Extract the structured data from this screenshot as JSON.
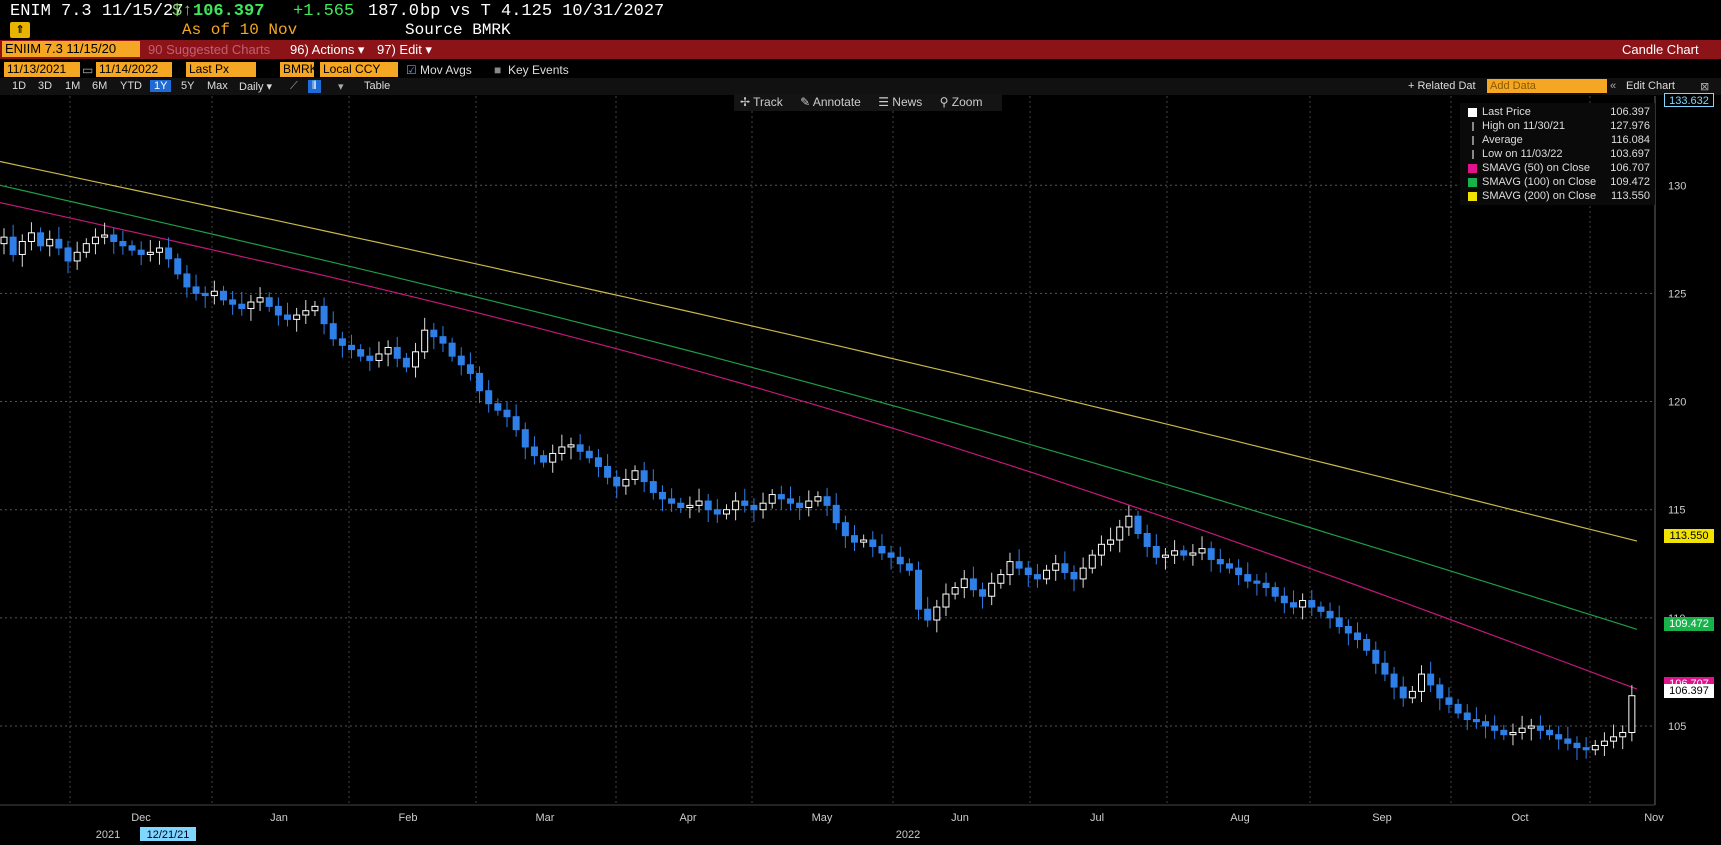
{
  "header": {
    "security": "ENIM 7.3 11/15/27",
    "price_prefix": "$↑",
    "price": "106.397",
    "change": "+1.565",
    "spread": "187.0",
    "spread_unit": "bp",
    "vs": "vs T 4.125 10/31/2027",
    "as_of": "As of 10 Nov",
    "source": "Source BMRK"
  },
  "toolbar": {
    "ticker_field": "ENIIM 7.3 11/15/20",
    "suggested": "90 Suggested Charts",
    "actions": "96) Actions ▾",
    "edit": "97) Edit ▾",
    "chart_type": "Candle Chart"
  },
  "params": {
    "start_date": "11/13/2021",
    "end_date": "11/14/2022",
    "field": "Last Px",
    "source": "BMRK",
    "currency": "Local CCY",
    "mov_avgs": "Mov Avgs",
    "key_events": "Key Events"
  },
  "periods": [
    "1D",
    "3D",
    "1M",
    "6M",
    "YTD",
    "1Y",
    "5Y",
    "Max"
  ],
  "active_period": "1Y",
  "freq": "Daily ▾",
  "table_label": "Table",
  "related": "+ Related Dat",
  "add_data_placeholder": "Add Data",
  "edit_chart": "Edit Chart",
  "chart_tools": [
    "Track",
    "Annotate",
    "News",
    "Zoom"
  ],
  "legend": [
    {
      "label": "Last Price",
      "value": "106.397",
      "color": "#ffffff"
    },
    {
      "label": "High on 11/30/21",
      "value": "127.976",
      "color": "#888888"
    },
    {
      "label": "Average",
      "value": "116.084",
      "color": "#888888"
    },
    {
      "label": "Low on 11/03/22",
      "value": "103.697",
      "color": "#888888"
    },
    {
      "label": "SMAVG (50)  on Close",
      "value": "106.707",
      "color": "#e0128c"
    },
    {
      "label": "SMAVG (100)  on Close",
      "value": "109.472",
      "color": "#17b34a"
    },
    {
      "label": "SMAVG (200)  on Close",
      "value": "113.550",
      "color": "#f2e200"
    }
  ],
  "badges": {
    "top": "133.632",
    "sma200": "113.550",
    "sma100": "109.472",
    "sma50": "106.707",
    "last": "106.397"
  },
  "chart_data": {
    "type": "candlestick",
    "y_ticks": [
      105,
      110,
      115,
      120,
      125,
      130
    ],
    "ylim": [
      100,
      133.632
    ],
    "x_months": [
      "Dec",
      "Jan",
      "Feb",
      "Mar",
      "Apr",
      "May",
      "Jun",
      "Jul",
      "Aug",
      "Sep",
      "Oct",
      "Nov"
    ],
    "x_years": [
      "2021",
      "2022"
    ],
    "cursor_date": "12/21/21",
    "close_series": [
      127.3,
      127.6,
      126.8,
      127.4,
      127.8,
      127.2,
      127.5,
      127.1,
      126.5,
      126.9,
      127.3,
      127.6,
      127.7,
      127.4,
      127.2,
      127.0,
      126.8,
      126.9,
      127.1,
      126.6,
      125.9,
      125.3,
      125.0,
      124.9,
      125.1,
      124.7,
      124.5,
      124.3,
      124.6,
      124.8,
      124.4,
      124.0,
      123.8,
      124.0,
      124.2,
      124.4,
      123.6,
      122.9,
      122.6,
      122.4,
      122.1,
      121.9,
      122.2,
      122.5,
      122.0,
      121.6,
      122.3,
      123.3,
      123.0,
      122.7,
      122.1,
      121.7,
      121.3,
      120.5,
      119.9,
      119.6,
      119.3,
      118.7,
      117.9,
      117.5,
      117.2,
      117.6,
      117.9,
      118.0,
      117.7,
      117.4,
      117.0,
      116.5,
      116.1,
      116.4,
      116.8,
      116.3,
      115.8,
      115.5,
      115.3,
      115.1,
      115.2,
      115.4,
      115.0,
      114.8,
      115.0,
      115.4,
      115.2,
      115.0,
      115.3,
      115.7,
      115.5,
      115.3,
      115.1,
      115.4,
      115.6,
      115.2,
      114.4,
      113.8,
      113.5,
      113.6,
      113.3,
      113.0,
      112.8,
      112.5,
      112.2,
      110.4,
      109.9,
      110.5,
      111.1,
      111.4,
      111.8,
      111.3,
      111.0,
      111.6,
      112.0,
      112.6,
      112.3,
      112.0,
      111.8,
      112.2,
      112.5,
      112.1,
      111.8,
      112.3,
      112.9,
      113.4,
      113.6,
      114.2,
      114.7,
      113.9,
      113.3,
      112.8,
      112.9,
      113.1,
      112.9,
      113.0,
      113.2,
      112.7,
      112.5,
      112.3,
      112.0,
      111.7,
      111.6,
      111.4,
      111.0,
      110.7,
      110.5,
      110.8,
      110.5,
      110.3,
      110.0,
      109.6,
      109.3,
      109.0,
      108.5,
      107.9,
      107.4,
      106.8,
      106.3,
      106.6,
      107.4,
      106.9,
      106.3,
      106.0,
      105.6,
      105.3,
      105.2,
      105.0,
      104.8,
      104.6,
      104.7,
      104.9,
      105.0,
      104.8,
      104.6,
      104.4,
      104.2,
      104.0,
      103.9,
      104.1,
      104.3,
      104.5,
      104.7,
      106.4
    ],
    "sma200_endpoints": [
      131.1,
      113.55
    ],
    "sma100_endpoints": [
      130.0,
      109.472
    ],
    "sma50_endpoints": [
      129.2,
      106.707
    ]
  }
}
